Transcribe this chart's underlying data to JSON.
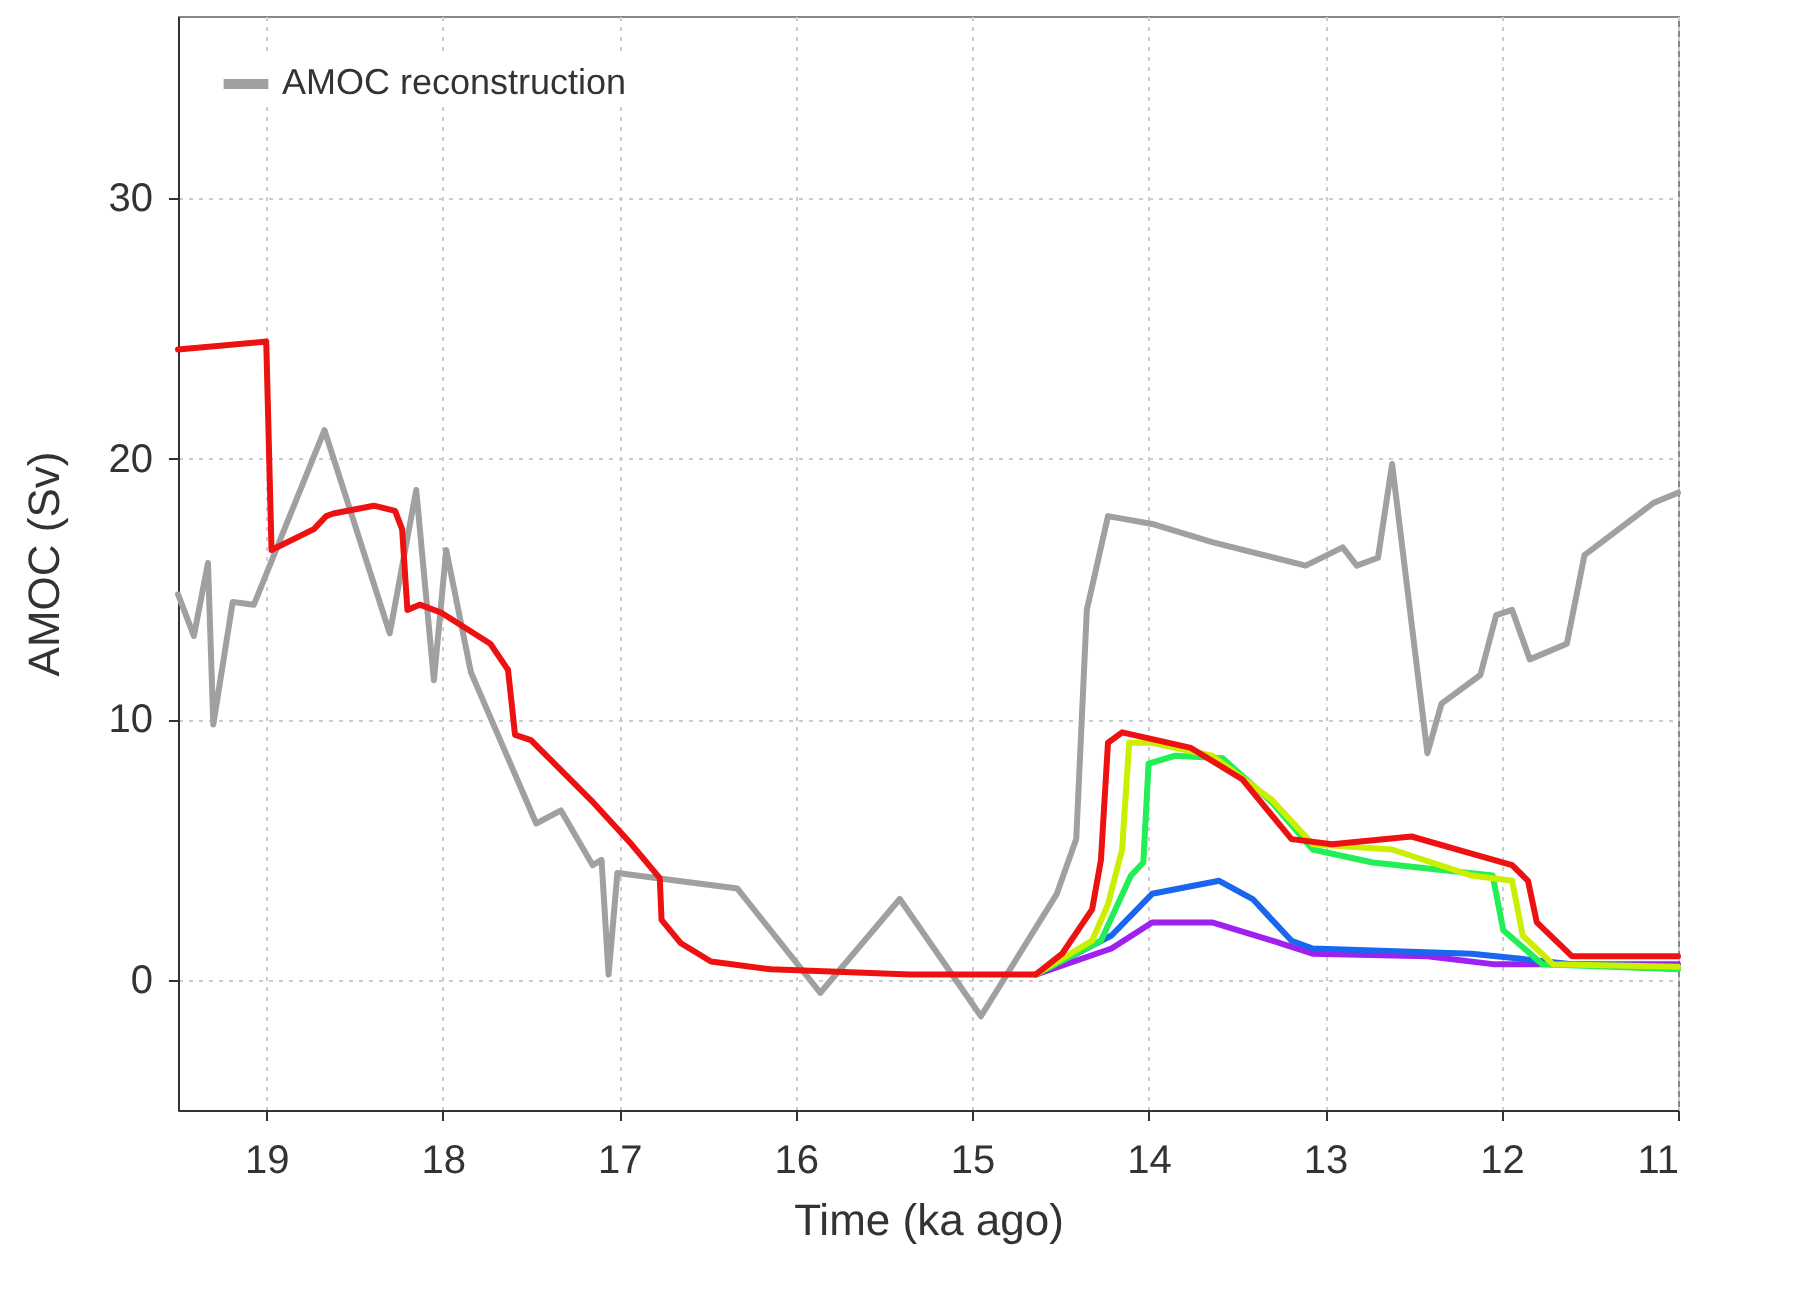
{
  "chart_data": {
    "type": "line",
    "xlabel": "Time (ka ago)",
    "ylabel": "AMOC (Sv)",
    "xlim": [
      19.5,
      11
    ],
    "ylim": [
      -5,
      37
    ],
    "xticks": [
      19,
      18,
      17,
      16,
      15,
      14,
      13,
      12,
      11
    ],
    "yticks": [
      0,
      10,
      20,
      30
    ],
    "grid": true,
    "legend": "top left",
    "series": [
      {
        "name": "AMOC reconstruction",
        "color": "#a0a0a0",
        "x": [
          19.5,
          19.41,
          19.33,
          19.3,
          19.19,
          19.07,
          18.67,
          18.3,
          18.15,
          18.05,
          17.98,
          17.84,
          17.47,
          17.33,
          17.15,
          17.1,
          17.06,
          17.01,
          16.33,
          15.86,
          15.41,
          14.95,
          14.52,
          14.41,
          14.35,
          14.23,
          13.98,
          13.64,
          13.11,
          12.9,
          12.82,
          12.7,
          12.62,
          12.42,
          12.34,
          12.12,
          12.03,
          11.94,
          11.84,
          11.63,
          11.53,
          11.14,
          11
        ],
        "values": [
          14.8,
          13.2,
          16,
          9.8,
          14.5,
          14.4,
          21.1,
          13.3,
          18.8,
          11.5,
          16.5,
          11.8,
          6,
          6.5,
          4.4,
          4.6,
          0.2,
          4.1,
          3.5,
          -0.5,
          3.1,
          -1.4,
          3.3,
          5.4,
          14.2,
          17.8,
          17.5,
          16.8,
          15.9,
          16.6,
          15.9,
          16.2,
          19.8,
          8.7,
          10.6,
          11.7,
          14,
          14.2,
          12.3,
          12.9,
          16.3,
          18.3,
          18.7
        ]
      },
      {
        "color": "#a020f0",
        "x": [
          14.64,
          14.21,
          13.98,
          13.64,
          13.3,
          13.07,
          12.42,
          12.05,
          11
        ],
        "values": [
          0.2,
          1.2,
          2.2,
          2.2,
          1.5,
          1,
          0.9,
          0.6,
          0.6
        ]
      },
      {
        "color": "#1a66ee",
        "x": [
          14.64,
          14.21,
          13.98,
          13.6,
          13.41,
          13.19,
          13.07,
          12.17,
          11.6,
          11
        ],
        "values": [
          0.2,
          1.7,
          3.3,
          3.8,
          3.1,
          1.5,
          1.2,
          1,
          0.6,
          0.5
        ]
      },
      {
        "color": "#22ee55",
        "x": [
          14.64,
          14.27,
          14.1,
          14.03,
          14,
          13.85,
          13.58,
          13.3,
          13.07,
          12.73,
          12.05,
          11.99,
          11.77,
          11
        ],
        "values": [
          0.2,
          1.5,
          4,
          4.5,
          8.3,
          8.6,
          8.5,
          6.8,
          5,
          4.5,
          4,
          1.9,
          0.6,
          0.4
        ]
      },
      {
        "color": "#ccee00",
        "x": [
          14.64,
          14.32,
          14.23,
          14.15,
          14.11,
          13.98,
          13.64,
          13.3,
          13.07,
          12.62,
          12.17,
          11.94,
          11.88,
          11.71,
          11
        ],
        "values": [
          0.2,
          1.5,
          2.9,
          5,
          9.1,
          9.1,
          8.6,
          6.9,
          5.2,
          5,
          4,
          3.8,
          1.7,
          0.6,
          0.5
        ]
      },
      {
        "color": "#ee1111",
        "x": [
          19.5,
          19,
          18.97,
          18.73,
          18.66,
          18.62,
          18.39,
          18.27,
          18.23,
          18.2,
          18.13,
          18.01,
          17.73,
          17.63,
          17.59,
          17.5,
          17.16,
          16.93,
          16.77,
          16.76,
          16.65,
          16.48,
          16.14,
          15.35,
          14.64,
          14.49,
          14.32,
          14.27,
          14.23,
          14.15,
          13.76,
          13.47,
          13.19,
          12.96,
          12.51,
          12.2,
          11.94,
          11.85,
          11.8,
          11.6,
          11
        ],
        "values": [
          24.2,
          24.5,
          16.5,
          17.3,
          17.8,
          17.9,
          18.2,
          18,
          17.3,
          14.2,
          14.4,
          14.1,
          12.9,
          11.9,
          9.4,
          9.2,
          6.9,
          5.2,
          3.9,
          2.3,
          1.4,
          0.7,
          0.4,
          0.2,
          0.2,
          1,
          2.7,
          4.6,
          9.1,
          9.5,
          8.9,
          7.7,
          5.4,
          5.2,
          5.5,
          4.9,
          4.4,
          3.8,
          2.2,
          0.9,
          0.9
        ]
      }
    ]
  }
}
